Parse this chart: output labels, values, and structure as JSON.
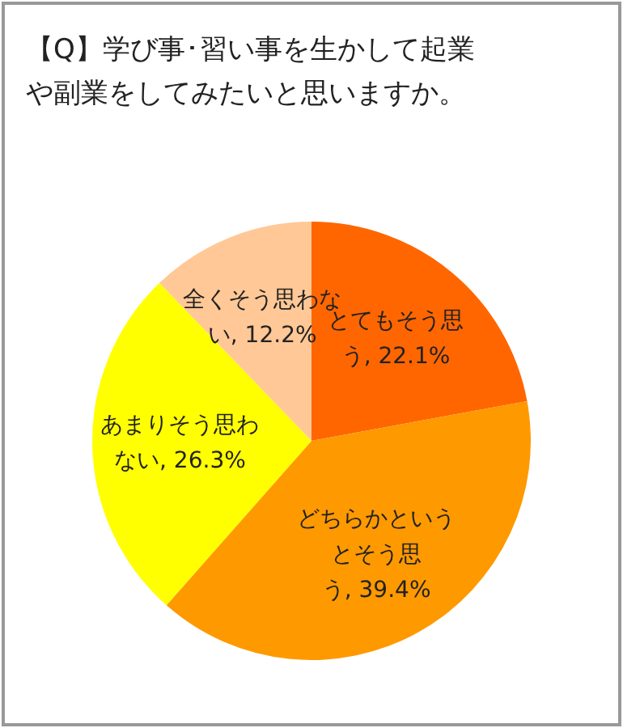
{
  "chart_data": {
    "type": "pie",
    "title": "【Q】学び事･習い事を生かして起業や副業をしてみたいと思いますか。",
    "categories": [
      "とてもそう思う",
      "どちらかというとそう思う",
      "あまりそう思わない",
      "全くそう思わない"
    ],
    "values": [
      22.1,
      39.4,
      26.3,
      12.2
    ],
    "value_labels": [
      "22.1%",
      "39.4%",
      "26.3%",
      "12.2%"
    ],
    "colors": [
      "#ff6600",
      "#ff9900",
      "#ffff00",
      "#ffc896"
    ],
    "legend": false
  }
}
